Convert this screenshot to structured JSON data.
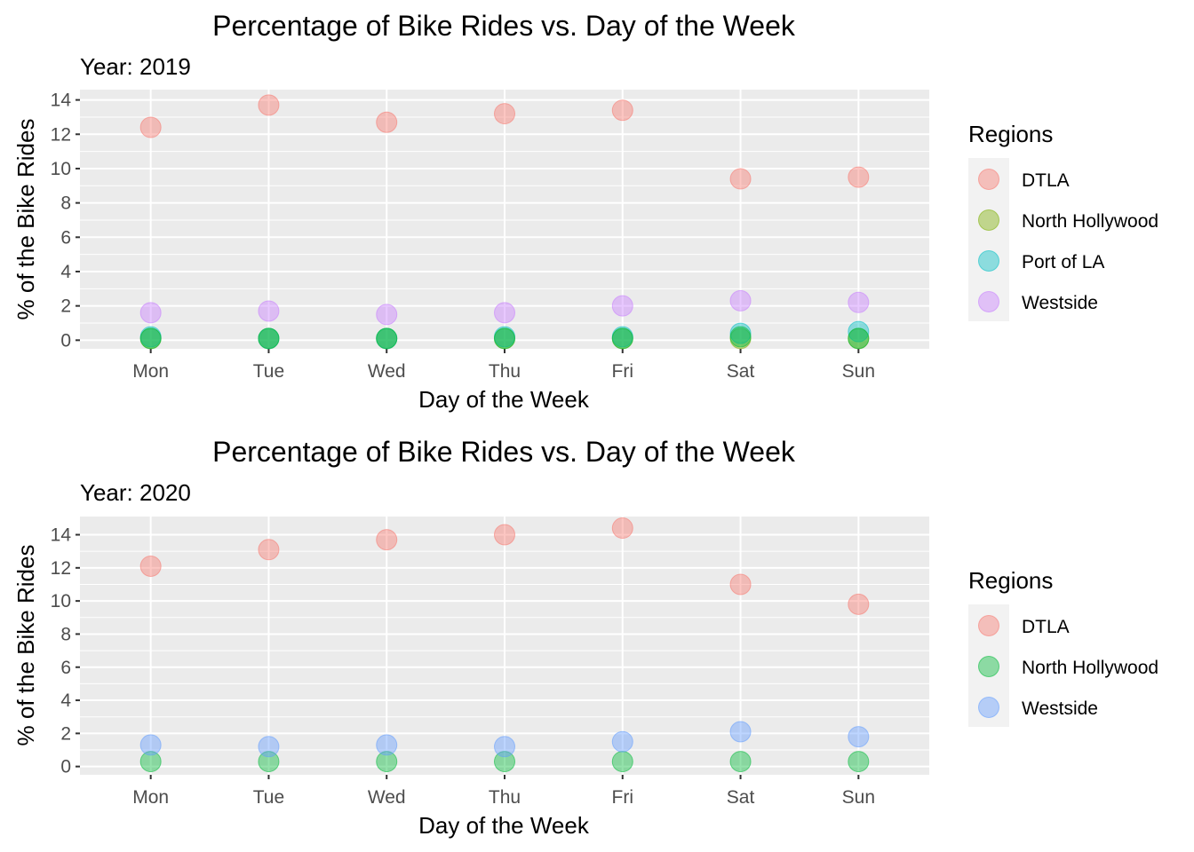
{
  "chart_data": [
    {
      "type": "scatter",
      "title": "Percentage of Bike Rides vs. Day of the Week",
      "subtitle": "Year: 2019",
      "xlabel": "Day of the Week",
      "ylabel": "% of the Bike Rides",
      "categories": [
        "Mon",
        "Tue",
        "Wed",
        "Thu",
        "Fri",
        "Sat",
        "Sun"
      ],
      "ylim": [
        -0.5,
        14.6
      ],
      "yticks": [
        0,
        2,
        4,
        6,
        8,
        10,
        12,
        14
      ],
      "legend_title": "Regions",
      "legend_position": "right",
      "grid": true,
      "series": [
        {
          "name": "DTLA",
          "color": "#F8766D",
          "values": [
            12.4,
            13.7,
            12.7,
            13.2,
            13.4,
            9.4,
            9.5
          ]
        },
        {
          "name": "North Hollywood",
          "color": "#7CAE00",
          "values": [
            0.1,
            0.1,
            0.1,
            0.1,
            0.1,
            0.1,
            0.1
          ]
        },
        {
          "name": "Port of LA",
          "color": "#00BFC4",
          "values": [
            0.2,
            0.1,
            0.1,
            0.2,
            0.2,
            0.4,
            0.5
          ]
        },
        {
          "name": "Westside",
          "color": "#C77CFF",
          "values": [
            1.6,
            1.7,
            1.5,
            1.6,
            2.0,
            2.3,
            2.2
          ]
        }
      ],
      "overlap_series": {
        "color": "#00BA38",
        "values": [
          0.1,
          0.1,
          0.1,
          0.1,
          0.1,
          0.2,
          0.1
        ]
      }
    },
    {
      "type": "scatter",
      "title": "Percentage of Bike Rides vs. Day of the Week",
      "subtitle": "Year: 2020",
      "xlabel": "Day of the Week",
      "ylabel": "% of the Bike Rides",
      "categories": [
        "Mon",
        "Tue",
        "Wed",
        "Thu",
        "Fri",
        "Sat",
        "Sun"
      ],
      "ylim": [
        -0.5,
        15.1
      ],
      "yticks": [
        0,
        2,
        4,
        6,
        8,
        10,
        12,
        14
      ],
      "legend_title": "Regions",
      "legend_position": "right",
      "grid": true,
      "series": [
        {
          "name": "DTLA",
          "color": "#F8766D",
          "values": [
            12.1,
            13.1,
            13.7,
            14.0,
            14.4,
            11.0,
            9.8
          ]
        },
        {
          "name": "North Hollywood",
          "color": "#00BA38",
          "values": [
            0.3,
            0.3,
            0.3,
            0.3,
            0.3,
            0.3,
            0.3
          ]
        },
        {
          "name": "Westside",
          "color": "#619CFF",
          "values": [
            1.3,
            1.2,
            1.3,
            1.2,
            1.5,
            2.1,
            1.8
          ]
        }
      ]
    }
  ]
}
